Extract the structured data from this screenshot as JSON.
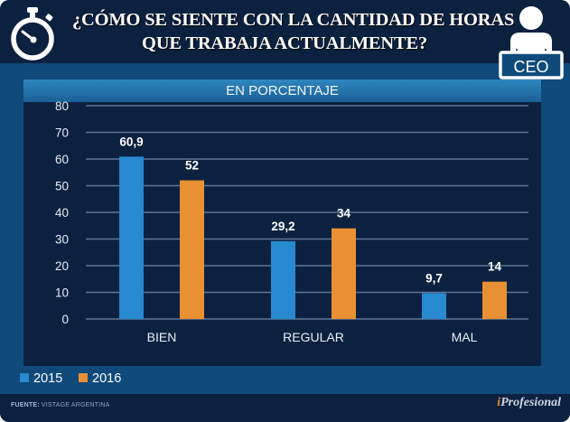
{
  "header": {
    "title_line1": "¿CÓMO SE SIENTE CON LA CANTIDAD DE HORAS",
    "title_line2": "QUE TRABAJA ACTUALMENTE?",
    "left_icon": "stopwatch-icon",
    "right_icon": "ceo-icon",
    "ceo_label": "CEO"
  },
  "panel": {
    "title": "EN PORCENTAJE"
  },
  "chart_data": {
    "type": "bar",
    "title": "¿CÓMO SE SIENTE CON LA CANTIDAD DE HORAS QUE TRABAJA ACTUALMENTE?",
    "subtitle": "EN PORCENTAJE",
    "categories": [
      "BIEN",
      "REGULAR",
      "MAL"
    ],
    "series": [
      {
        "name": "2015",
        "values": [
          60.9,
          29.2,
          9.7
        ],
        "labels": [
          "60,9",
          "29,2",
          "9,7"
        ],
        "color": "#2789cf"
      },
      {
        "name": "2016",
        "values": [
          52,
          34,
          14
        ],
        "labels": [
          "52",
          "34",
          "14"
        ],
        "color": "#e89033"
      }
    ],
    "xlabel": "",
    "ylabel": "",
    "ylim": [
      0,
      80
    ],
    "yticks": [
      0,
      10,
      20,
      30,
      40,
      50,
      60,
      70,
      80
    ],
    "grid": true,
    "legend": "bottom-left"
  },
  "legend": {
    "items": [
      {
        "label": "2015",
        "color": "#2789cf"
      },
      {
        "label": "2016",
        "color": "#e89033"
      }
    ]
  },
  "footer": {
    "source_label": "FUENTE:",
    "source_value": "VISTAGE ARGENTINA",
    "brand_i": "i",
    "brand_rest": "Profesional"
  }
}
